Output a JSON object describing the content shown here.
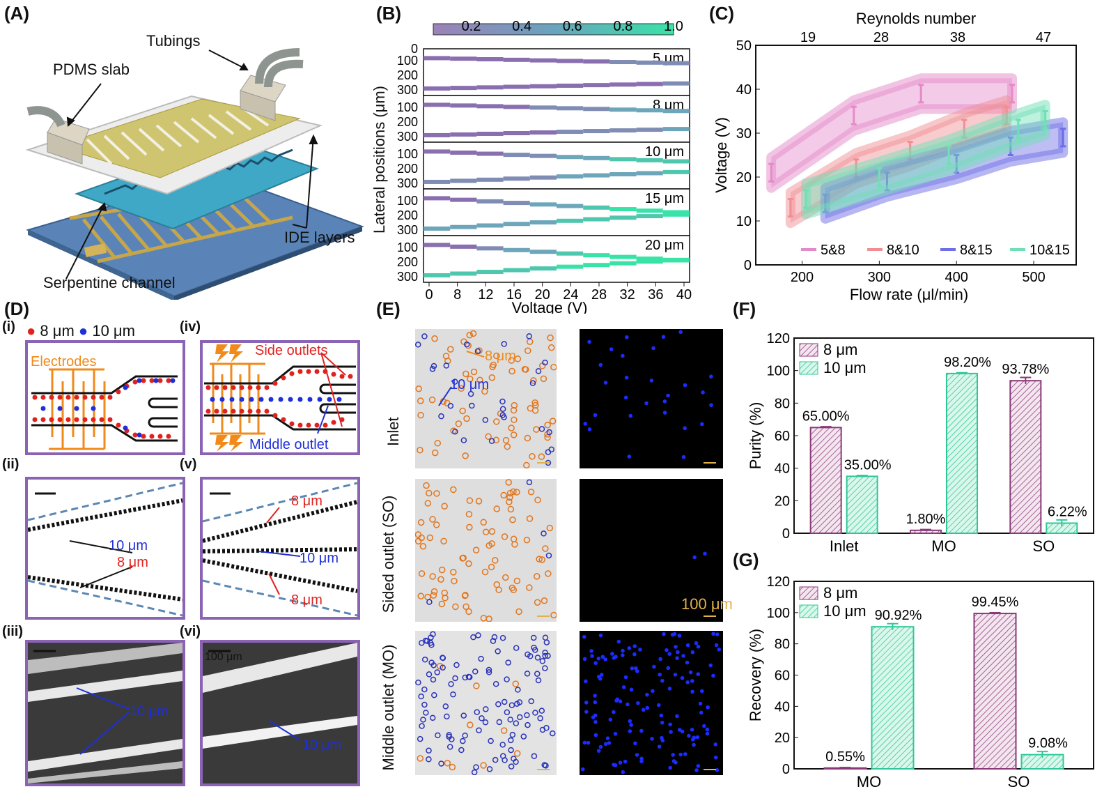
{
  "panels": {
    "A": "(A)",
    "B": "(B)",
    "C": "(C)",
    "D": "(D)",
    "E": "(E)",
    "F": "(F)",
    "G": "(G)"
  },
  "device": {
    "tubings": "Tubings",
    "pdms_slab": "PDMS slab",
    "ide_layers": "IDE layers",
    "serpentine": "Serpentine channel"
  },
  "panel_b": {
    "colorbar_ticks": [
      "0.2",
      "0.4",
      "0.6",
      "0.8",
      "1.0"
    ],
    "ylabel": "Lateral positions (μm)",
    "xlabel": "Voltage (V)",
    "xticks": [
      "0",
      "8",
      "12",
      "16",
      "20",
      "24",
      "28",
      "32",
      "36",
      "40"
    ],
    "sizes": [
      "5 μm",
      "8 μm",
      "10 μm",
      "15 μm",
      "20 μm"
    ],
    "yticks": [
      "100",
      "200",
      "300"
    ],
    "first_ytick": "0"
  },
  "panel_d": {
    "legend_8": "8 μm",
    "legend_10": "10 μm",
    "sub": [
      "(i)",
      "(ii)",
      "(iii)",
      "(iv)",
      "(v)",
      "(vi)"
    ],
    "electrodes": "Electrodes",
    "side_outlets": "Side outlets",
    "middle_outlet": "Middle outlet",
    "label_10": "10 μm",
    "label_8": "8 μm",
    "scale": "100 μm"
  },
  "panel_e": {
    "rows": [
      "Inlet",
      "Sided outlet (SO)",
      "Middle outlet (MO)"
    ],
    "label_8": "8 μm",
    "label_10": "10 μm",
    "scale": "100 μm"
  },
  "chart_data": [
    {
      "type": "area",
      "panel": "C",
      "xlabel": "Flow rate (μl/min)",
      "ylabel": "Voltage (V)",
      "top_axis_label": "Reynolds number",
      "top_ticks": [
        "19",
        "28",
        "38",
        "47"
      ],
      "xticks": [
        "200",
        "300",
        "400",
        "500"
      ],
      "yticks": [
        "0",
        "10",
        "20",
        "30",
        "40",
        "50"
      ],
      "xlim": [
        140,
        555
      ],
      "ylim": [
        0,
        50
      ],
      "series": [
        {
          "name": "5&8",
          "color": "#e58ac9",
          "points": [
            [
              160,
              21
            ],
            [
              267,
              34
            ],
            [
              354,
              39
            ],
            [
              472,
              39
            ]
          ]
        },
        {
          "name": "8&10",
          "color": "#ef8f94",
          "points": [
            [
              185,
              13
            ],
            [
              270,
              22
            ],
            [
              340,
              26
            ],
            [
              410,
              31
            ],
            [
              465,
              34
            ]
          ]
        },
        {
          "name": "8&15",
          "color": "#6e6ee6",
          "points": [
            [
              230,
              14
            ],
            [
              310,
              19
            ],
            [
              400,
              23
            ],
            [
              470,
              27
            ],
            [
              538,
              29
            ]
          ]
        },
        {
          "name": "10&15",
          "color": "#6fe0b5",
          "points": [
            [
              205,
              15
            ],
            [
              300,
              20
            ],
            [
              390,
              25
            ],
            [
              480,
              31
            ],
            [
              515,
              33
            ]
          ]
        }
      ]
    },
    {
      "type": "bar",
      "panel": "F",
      "ylabel": "Purity (%)",
      "categories": [
        "Inlet",
        "MO",
        "SO"
      ],
      "ylim": [
        0,
        120
      ],
      "yticks": [
        "0",
        "20",
        "40",
        "60",
        "80",
        "100",
        "120"
      ],
      "series": [
        {
          "name": "8 μm",
          "values": [
            65.0,
            1.8,
            93.78
          ],
          "labels": [
            "65.00%",
            "1.80%",
            "93.78%"
          ],
          "errors": [
            0.5,
            0.5,
            2
          ]
        },
        {
          "name": "10 μm",
          "values": [
            35.0,
            98.2,
            6.22
          ],
          "labels": [
            "35.00%",
            "98.20%",
            "6.22%"
          ],
          "errors": [
            0.5,
            0.5,
            2
          ]
        }
      ]
    },
    {
      "type": "bar",
      "panel": "G",
      "ylabel": "Recovery (%)",
      "categories": [
        "MO",
        "SO"
      ],
      "ylim": [
        0,
        120
      ],
      "yticks": [
        "0",
        "20",
        "40",
        "60",
        "80",
        "100",
        "120"
      ],
      "series": [
        {
          "name": "8 μm",
          "values": [
            0.55,
            99.45
          ],
          "labels": [
            "0.55%",
            "99.45%"
          ],
          "errors": [
            0.3,
            0.5
          ]
        },
        {
          "name": "10 μm",
          "values": [
            90.92,
            9.08
          ],
          "labels": [
            "90.92%",
            "9.08%"
          ],
          "errors": [
            2,
            2
          ]
        }
      ]
    }
  ]
}
